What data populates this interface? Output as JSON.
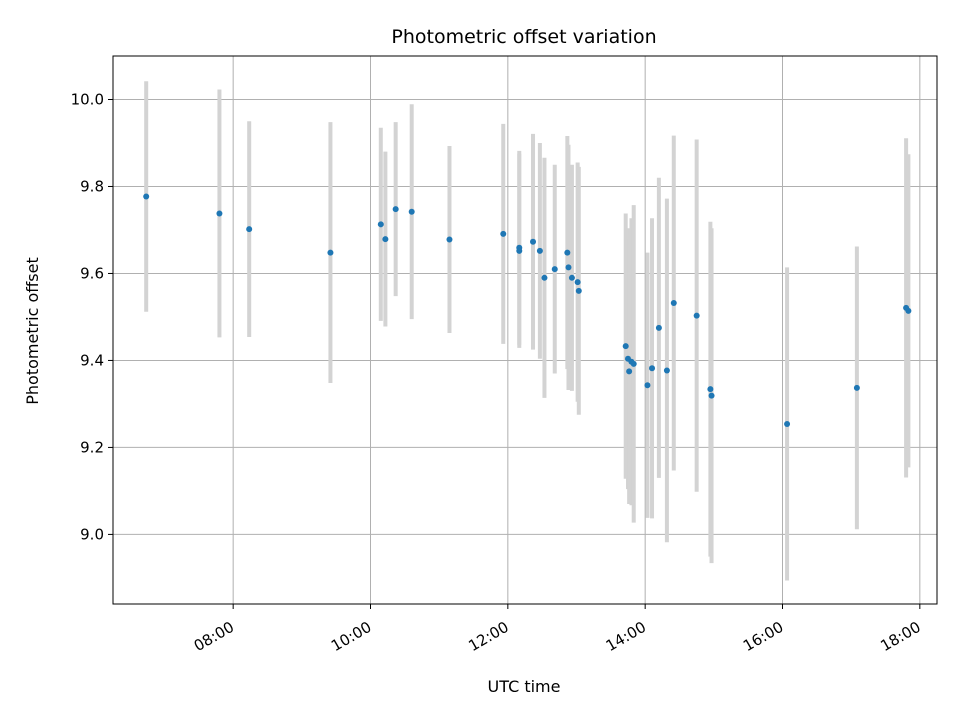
{
  "chart_data": {
    "type": "scatter",
    "title": "Photometric offset variation",
    "xlabel": "UTC time",
    "ylabel": "Photometric offset",
    "x_unit": "UTC time of day (HH:MM)",
    "xlim": [
      "06:15",
      "18:15"
    ],
    "ylim": [
      8.84,
      10.1
    ],
    "grid": true,
    "x_ticks": [
      "08:00",
      "10:00",
      "12:00",
      "14:00",
      "16:00",
      "18:00"
    ],
    "y_ticks": [
      "9.0",
      "9.2",
      "9.4",
      "9.6",
      "9.8",
      "10.0"
    ],
    "colors": {
      "point": "#1f77b4",
      "errorbar": "#d3d3d3",
      "grid": "#b0b0b0",
      "frame": "#000000"
    },
    "points": [
      {
        "x": "06:44",
        "y": 9.777,
        "err": 0.265
      },
      {
        "x": "07:48",
        "y": 9.738,
        "err": 0.285
      },
      {
        "x": "08:14",
        "y": 9.702,
        "err": 0.248
      },
      {
        "x": "09:25",
        "y": 9.648,
        "err": 0.3
      },
      {
        "x": "10:09",
        "y": 9.713,
        "err": 0.222
      },
      {
        "x": "10:13",
        "y": 9.679,
        "err": 0.201
      },
      {
        "x": "10:22",
        "y": 9.748,
        "err": 0.2
      },
      {
        "x": "10:36",
        "y": 9.742,
        "err": 0.247
      },
      {
        "x": "11:09",
        "y": 9.678,
        "err": 0.215
      },
      {
        "x": "11:56",
        "y": 9.691,
        "err": 0.253
      },
      {
        "x": "12:10",
        "y": 9.659,
        "err": 0.223
      },
      {
        "x": "12:10",
        "y": 9.652,
        "err": 0.223
      },
      {
        "x": "12:22",
        "y": 9.673,
        "err": 0.248
      },
      {
        "x": "12:28",
        "y": 9.652,
        "err": 0.248
      },
      {
        "x": "12:32",
        "y": 9.59,
        "err": 0.276
      },
      {
        "x": "12:41",
        "y": 9.61,
        "err": 0.24
      },
      {
        "x": "12:52",
        "y": 9.648,
        "err": 0.268
      },
      {
        "x": "12:53",
        "y": 9.614,
        "err": 0.282
      },
      {
        "x": "12:56",
        "y": 9.59,
        "err": 0.26
      },
      {
        "x": "13:01",
        "y": 9.58,
        "err": 0.275
      },
      {
        "x": "13:02",
        "y": 9.56,
        "err": 0.285
      },
      {
        "x": "13:43",
        "y": 9.433,
        "err": 0.305
      },
      {
        "x": "13:45",
        "y": 9.404,
        "err": 0.3
      },
      {
        "x": "13:46",
        "y": 9.375,
        "err": 0.305
      },
      {
        "x": "13:48",
        "y": 9.397,
        "err": 0.33
      },
      {
        "x": "13:50",
        "y": 9.392,
        "err": 0.365
      },
      {
        "x": "14:02",
        "y": 9.343,
        "err": 0.305
      },
      {
        "x": "14:06",
        "y": 9.382,
        "err": 0.345
      },
      {
        "x": "14:12",
        "y": 9.475,
        "err": 0.345
      },
      {
        "x": "14:19",
        "y": 9.377,
        "err": 0.395
      },
      {
        "x": "14:25",
        "y": 9.532,
        "err": 0.385
      },
      {
        "x": "14:45",
        "y": 9.503,
        "err": 0.405
      },
      {
        "x": "14:57",
        "y": 9.334,
        "err": 0.385
      },
      {
        "x": "14:58",
        "y": 9.319,
        "err": 0.385
      },
      {
        "x": "16:04",
        "y": 9.254,
        "err": 0.36
      },
      {
        "x": "17:05",
        "y": 9.337,
        "err": 0.325
      },
      {
        "x": "17:48",
        "y": 9.521,
        "err": 0.39
      },
      {
        "x": "17:50",
        "y": 9.514,
        "err": 0.36
      }
    ]
  }
}
